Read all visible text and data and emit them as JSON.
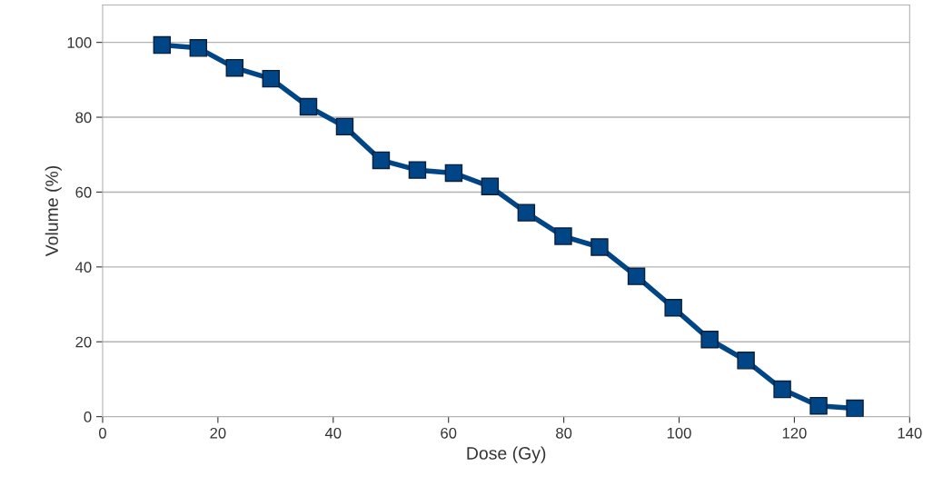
{
  "chart_data": {
    "type": "line",
    "xlabel": "Dose (Gy)",
    "ylabel": "Volume (%)",
    "x": [
      10.3,
      16.6,
      22.9,
      29.2,
      35.7,
      42.0,
      48.3,
      54.6,
      60.9,
      67.2,
      73.5,
      79.9,
      86.2,
      92.6,
      99.0,
      105.3,
      111.6,
      117.9,
      124.2,
      130.5
    ],
    "series": [
      {
        "color": "#004586",
        "values": [
          99.3,
          98.5,
          93.2,
          90.3,
          82.8,
          77.5,
          68.5,
          65.9,
          65.1,
          61.5,
          54.5,
          48.2,
          45.3,
          37.5,
          29.1,
          20.6,
          15.0,
          7.3,
          2.9,
          2.2
        ]
      }
    ],
    "xlim": [
      0,
      140
    ],
    "xticks": [
      0,
      20,
      40,
      60,
      80,
      100,
      120,
      140
    ],
    "ylim": [
      0,
      110
    ],
    "yticks": [
      0,
      20,
      40,
      60,
      80,
      100
    ],
    "grid": "y",
    "marker": "square",
    "line_style": "solid"
  }
}
